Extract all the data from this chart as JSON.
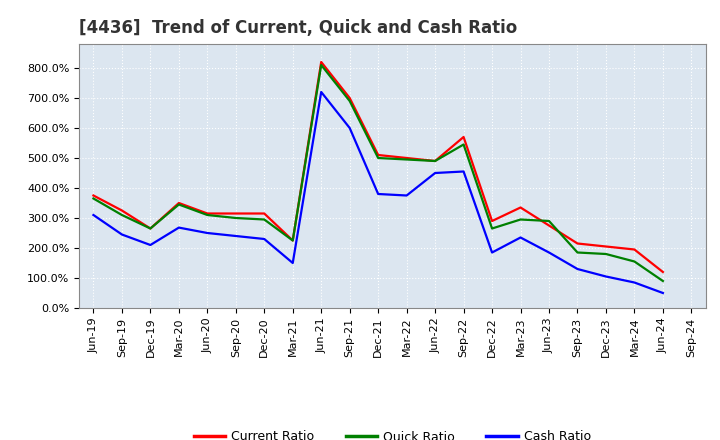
{
  "title": "[4436]  Trend of Current, Quick and Cash Ratio",
  "x_labels": [
    "Jun-19",
    "Sep-19",
    "Dec-19",
    "Mar-20",
    "Jun-20",
    "Sep-20",
    "Dec-20",
    "Mar-21",
    "Jun-21",
    "Sep-21",
    "Dec-21",
    "Mar-22",
    "Jun-22",
    "Sep-22",
    "Dec-22",
    "Mar-23",
    "Jun-23",
    "Sep-23",
    "Dec-23",
    "Mar-24",
    "Jun-24",
    "Sep-24"
  ],
  "current_ratio": [
    375,
    325,
    265,
    350,
    315,
    315,
    315,
    225,
    820,
    700,
    510,
    500,
    490,
    570,
    290,
    335,
    275,
    215,
    205,
    195,
    120,
    null
  ],
  "quick_ratio": [
    365,
    310,
    265,
    345,
    310,
    300,
    295,
    225,
    810,
    690,
    500,
    495,
    490,
    545,
    265,
    295,
    290,
    185,
    180,
    155,
    90,
    null
  ],
  "cash_ratio": [
    310,
    245,
    210,
    268,
    250,
    240,
    230,
    150,
    720,
    600,
    380,
    375,
    450,
    455,
    185,
    235,
    185,
    130,
    105,
    85,
    50,
    null
  ],
  "current_color": "#ff0000",
  "quick_color": "#008000",
  "cash_color": "#0000ff",
  "ylim": [
    0,
    880
  ],
  "yticks": [
    0,
    100,
    200,
    300,
    400,
    500,
    600,
    700,
    800
  ],
  "plot_bg_color": "#dce6f0",
  "fig_bg_color": "#ffffff",
  "grid_color": "#ffffff",
  "title_color": "#333333",
  "title_fontsize": 12,
  "axis_fontsize": 8,
  "legend_fontsize": 9,
  "line_width": 1.6
}
